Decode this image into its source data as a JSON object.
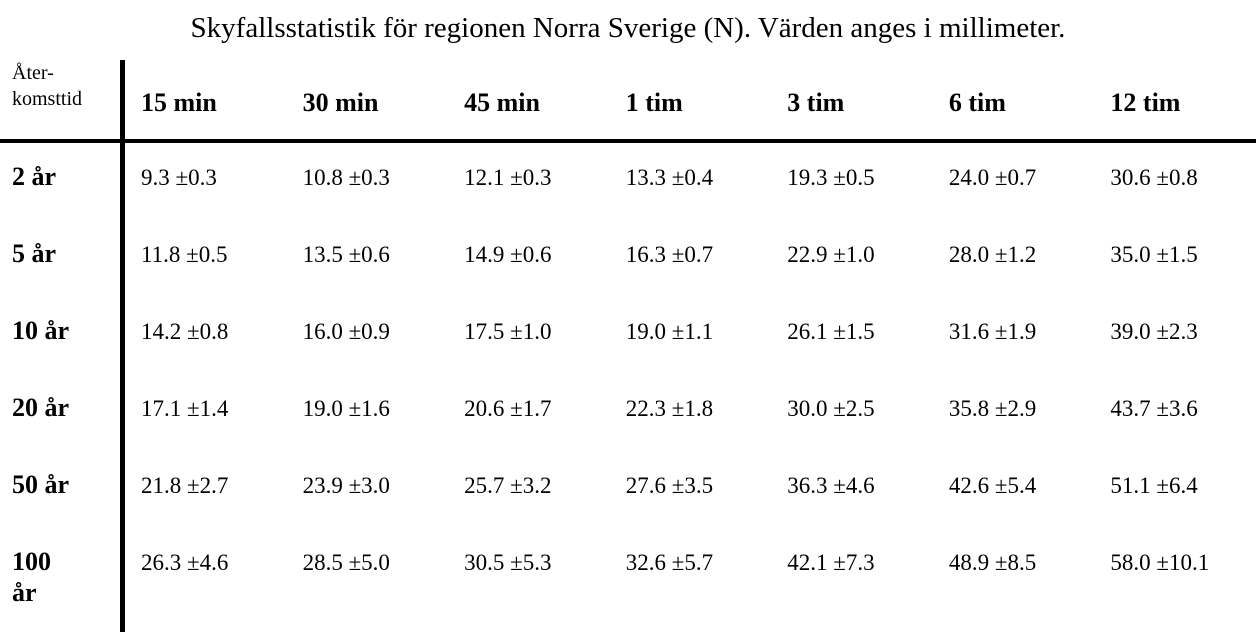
{
  "page": {
    "title": "Skyfallsstatistik för regionen Norra Sverige (N). Värden anges i millimeter."
  },
  "table": {
    "corner_header": "Åter-komsttid",
    "corner_header_lines": [
      "Åter-",
      "komsttid"
    ],
    "column_headers": [
      "15 min",
      "30 min",
      "45 min",
      "1 tim",
      "3 tim",
      "6 tim",
      "12 tim"
    ],
    "rows": [
      {
        "label": "2 år",
        "values": [
          "9.3 ±0.3",
          "10.8 ±0.3",
          "12.1 ±0.3",
          "13.3 ±0.4",
          "19.3 ±0.5",
          "24.0 ±0.7",
          "30.6 ±0.8"
        ]
      },
      {
        "label": "5 år",
        "values": [
          "11.8 ±0.5",
          "13.5 ±0.6",
          "14.9 ±0.6",
          "16.3 ±0.7",
          "22.9 ±1.0",
          "28.0 ±1.2",
          "35.0 ±1.5"
        ]
      },
      {
        "label": "10 år",
        "values": [
          "14.2 ±0.8",
          "16.0 ±0.9",
          "17.5 ±1.0",
          "19.0 ±1.1",
          "26.1 ±1.5",
          "31.6 ±1.9",
          "39.0 ±2.3"
        ]
      },
      {
        "label": "20 år",
        "values": [
          "17.1 ±1.4",
          "19.0 ±1.6",
          "20.6 ±1.7",
          "22.3 ±1.8",
          "30.0 ±2.5",
          "35.8 ±2.9",
          "43.7 ±3.6"
        ]
      },
      {
        "label": "50 år",
        "values": [
          "21.8 ±2.7",
          "23.9 ±3.0",
          "25.7 ±3.2",
          "27.6 ±3.5",
          "36.3 ±4.6",
          "42.6 ±5.4",
          "51.1 ±6.4"
        ]
      },
      {
        "label": "100 år",
        "values": [
          "26.3 ±4.6",
          "28.5 ±5.0",
          "30.5 ±5.3",
          "32.6 ±5.7",
          "42.1 ±7.3",
          "48.9 ±8.5",
          "58.0 ±10.1"
        ]
      }
    ]
  },
  "chart_data": {
    "type": "table",
    "title": "Skyfallsstatistik för regionen Norra Sverige (N). Värden anges i millimeter.",
    "unit": "mm",
    "row_header_label": "Återkomsttid",
    "columns": [
      "15 min",
      "30 min",
      "45 min",
      "1 tim",
      "3 tim",
      "6 tim",
      "12 tim"
    ],
    "row_labels": [
      "2 år",
      "5 år",
      "10 år",
      "20 år",
      "50 år",
      "100 år"
    ],
    "values_mm": [
      [
        9.3,
        10.8,
        12.1,
        13.3,
        19.3,
        24.0,
        30.6
      ],
      [
        11.8,
        13.5,
        14.9,
        16.3,
        22.9,
        28.0,
        35.0
      ],
      [
        14.2,
        16.0,
        17.5,
        19.0,
        26.1,
        31.6,
        39.0
      ],
      [
        17.1,
        19.0,
        20.6,
        22.3,
        30.0,
        35.8,
        43.7
      ],
      [
        21.8,
        23.9,
        25.7,
        27.6,
        36.3,
        42.6,
        51.1
      ],
      [
        26.3,
        28.5,
        30.5,
        32.6,
        42.1,
        48.9,
        58.0
      ]
    ],
    "uncertainties_mm": [
      [
        0.3,
        0.3,
        0.3,
        0.4,
        0.5,
        0.7,
        0.8
      ],
      [
        0.5,
        0.6,
        0.6,
        0.7,
        1.0,
        1.2,
        1.5
      ],
      [
        0.8,
        0.9,
        1.0,
        1.1,
        1.5,
        1.9,
        2.3
      ],
      [
        1.4,
        1.6,
        1.7,
        1.8,
        2.5,
        2.9,
        3.6
      ],
      [
        2.7,
        3.0,
        3.2,
        3.5,
        4.6,
        5.4,
        6.4
      ],
      [
        4.6,
        5.0,
        5.3,
        5.7,
        7.3,
        8.5,
        10.1
      ]
    ],
    "colors": {
      "text": "#000000",
      "background": "#ffffff",
      "rule": "#000000"
    }
  }
}
